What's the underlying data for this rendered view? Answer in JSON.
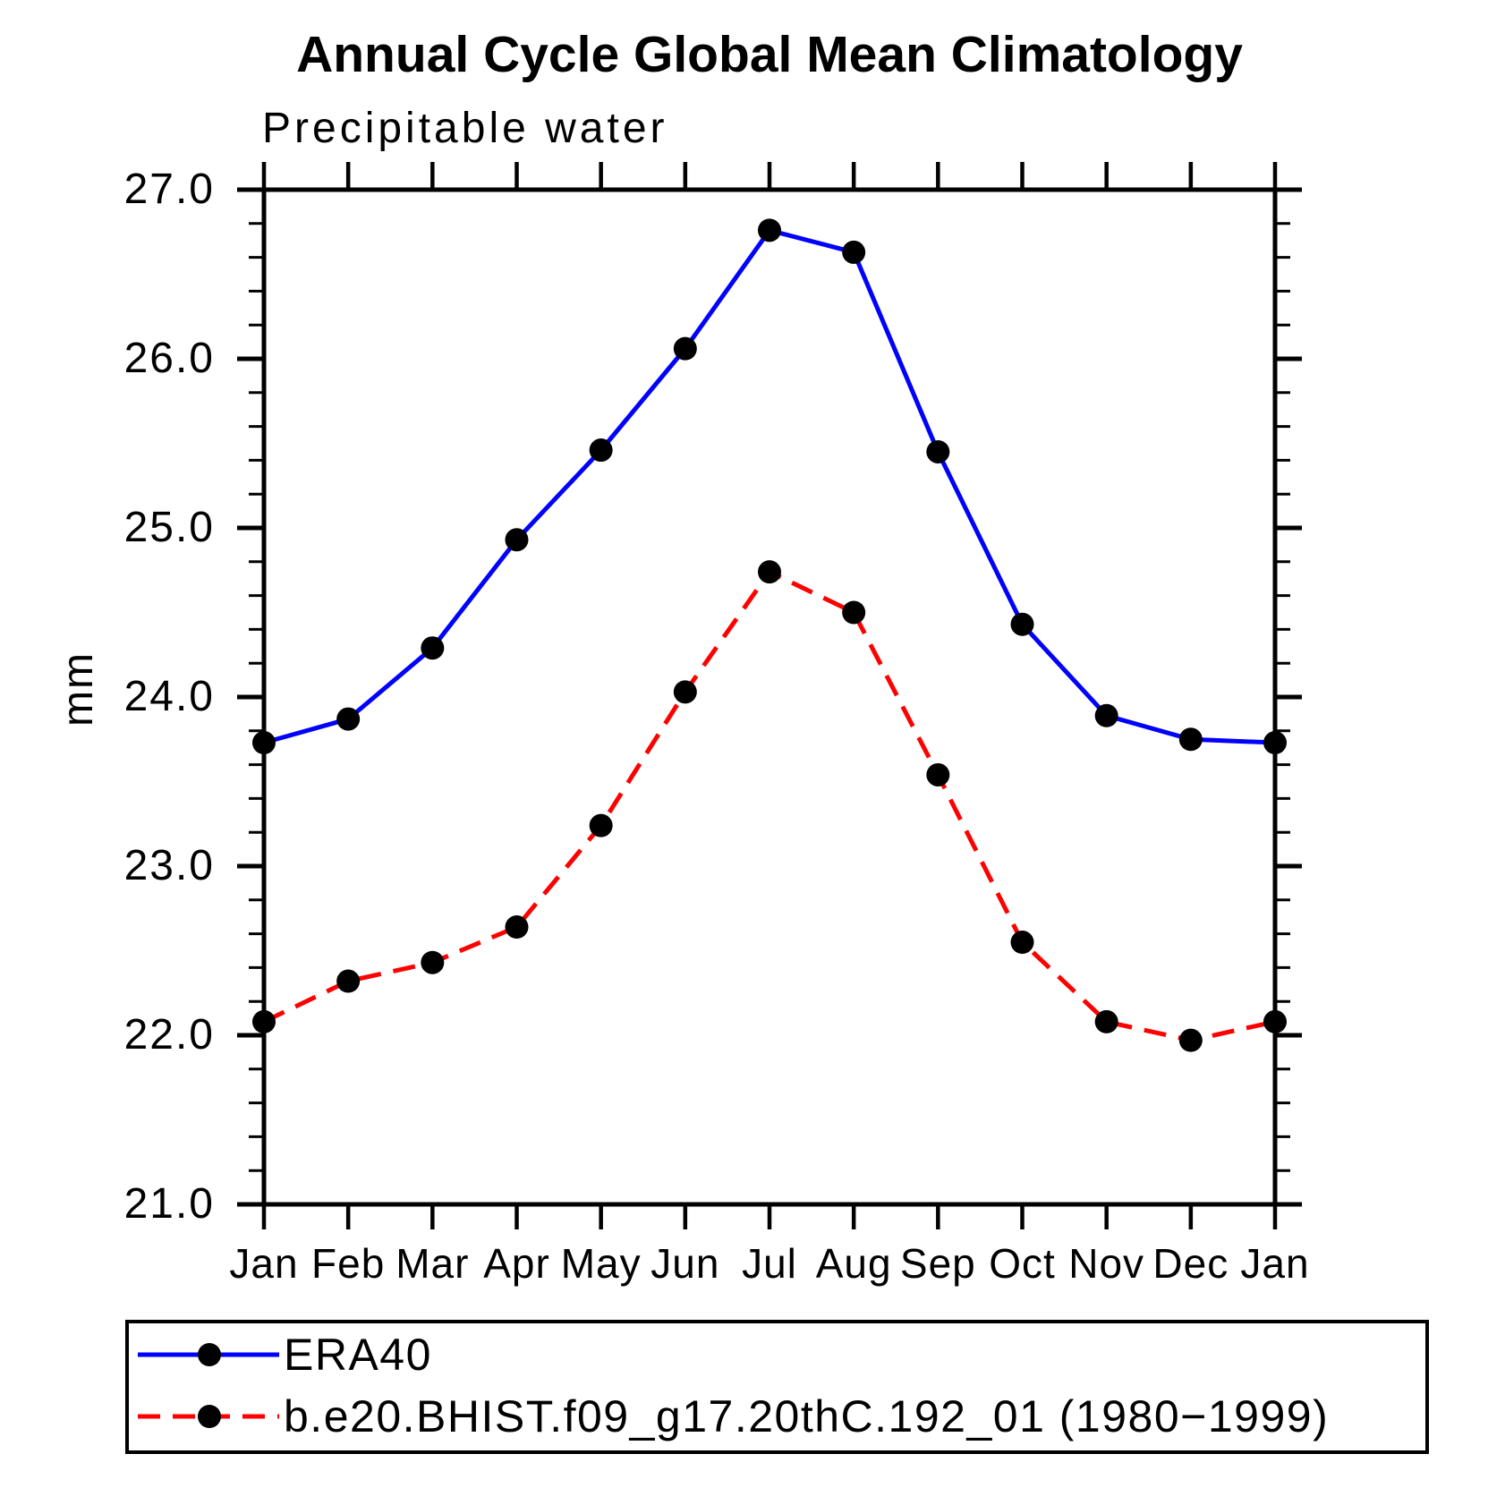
{
  "title": "Annual Cycle Global Mean Climatology",
  "subtitle": "Precipitable water",
  "y_axis_title": "mm",
  "chart_data": {
    "type": "line",
    "title": "Annual Cycle Global Mean Climatology",
    "subtitle": "Precipitable water",
    "ylabel": "mm",
    "xlabel": "",
    "categories": [
      "Jan",
      "Feb",
      "Mar",
      "Apr",
      "May",
      "Jun",
      "Jul",
      "Aug",
      "Sep",
      "Oct",
      "Nov",
      "Dec",
      "Jan"
    ],
    "ylim": [
      21.0,
      27.0
    ],
    "ytick_interval": 1.0,
    "yminor_interval": 0.2,
    "ytick_format_example": "21.0",
    "grid": false,
    "legend_position": "bottom",
    "marker": "filled-circle",
    "marker_color": "#000000",
    "axis_color": "#000000",
    "series": [
      {
        "name": "ERA40",
        "color": "#0000ff",
        "line_style": "solid",
        "values": [
          23.73,
          23.87,
          24.29,
          24.93,
          25.46,
          26.06,
          26.76,
          26.63,
          25.45,
          24.43,
          23.89,
          23.75,
          23.73
        ]
      },
      {
        "name": "b.e20.BHIST.f09_g17.20thC.192_01 (1980−1999)",
        "color": "#ff0000",
        "line_style": "dashed",
        "values": [
          22.08,
          22.32,
          22.43,
          22.64,
          23.24,
          24.03,
          24.74,
          24.5,
          23.54,
          22.55,
          22.08,
          21.97,
          22.08
        ]
      }
    ]
  }
}
